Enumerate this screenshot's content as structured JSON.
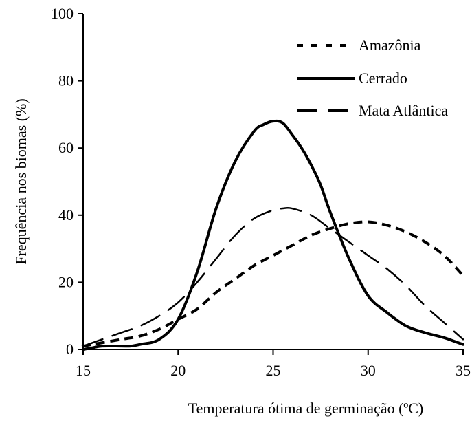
{
  "chart_data": {
    "type": "line",
    "title": "",
    "xlabel": "Temperatura ótima de germinação (ºC)",
    "ylabel": "Frequência nos biomas (%)",
    "xlim": [
      15,
      35
    ],
    "ylim": [
      0,
      100
    ],
    "x_ticks": [
      "15",
      "20",
      "25",
      "30",
      "35"
    ],
    "y_ticks": [
      "0",
      "20",
      "40",
      "60",
      "80",
      "100"
    ],
    "grid": false,
    "legend_position": "top-right",
    "series": [
      {
        "name": "Amazônia",
        "style": "dotted",
        "color": "#000000",
        "x": [
          15,
          16,
          17,
          18,
          19,
          20,
          21,
          22,
          23,
          24,
          25,
          26,
          27,
          28,
          29,
          30,
          31,
          32,
          33,
          34,
          35
        ],
        "y": [
          1,
          2,
          3,
          4,
          6,
          9,
          12,
          17,
          21,
          25,
          28,
          31,
          34,
          36,
          37.5,
          38,
          37,
          35,
          32,
          28,
          22
        ]
      },
      {
        "name": "Cerrado",
        "style": "solid",
        "color": "#000000",
        "x": [
          15,
          15.5,
          16,
          17,
          17.5,
          18,
          19,
          20,
          21,
          22,
          23,
          24,
          24.5,
          25,
          25.5,
          26,
          26.5,
          27,
          27.5,
          28,
          29,
          30,
          31,
          32,
          33,
          34,
          34.5,
          35
        ],
        "y": [
          0,
          0.5,
          1,
          1,
          1,
          1.5,
          3,
          9,
          23,
          42,
          56,
          65,
          67,
          68,
          67.5,
          64,
          60,
          55,
          49,
          41,
          27,
          16,
          11,
          7,
          5,
          3.5,
          2.5,
          1.5
        ]
      },
      {
        "name": "Mata Atlântica",
        "style": "dashed",
        "color": "#000000",
        "x": [
          15,
          16,
          17,
          18,
          19,
          20,
          21,
          22,
          23,
          24,
          25,
          25.5,
          26,
          27,
          28,
          29,
          30,
          31,
          32,
          33,
          34,
          35
        ],
        "y": [
          1,
          3,
          5,
          7,
          10,
          14,
          20,
          27,
          34,
          39,
          41.5,
          42,
          42,
          40,
          36,
          32,
          28,
          24,
          19,
          13,
          8,
          3
        ]
      }
    ]
  }
}
